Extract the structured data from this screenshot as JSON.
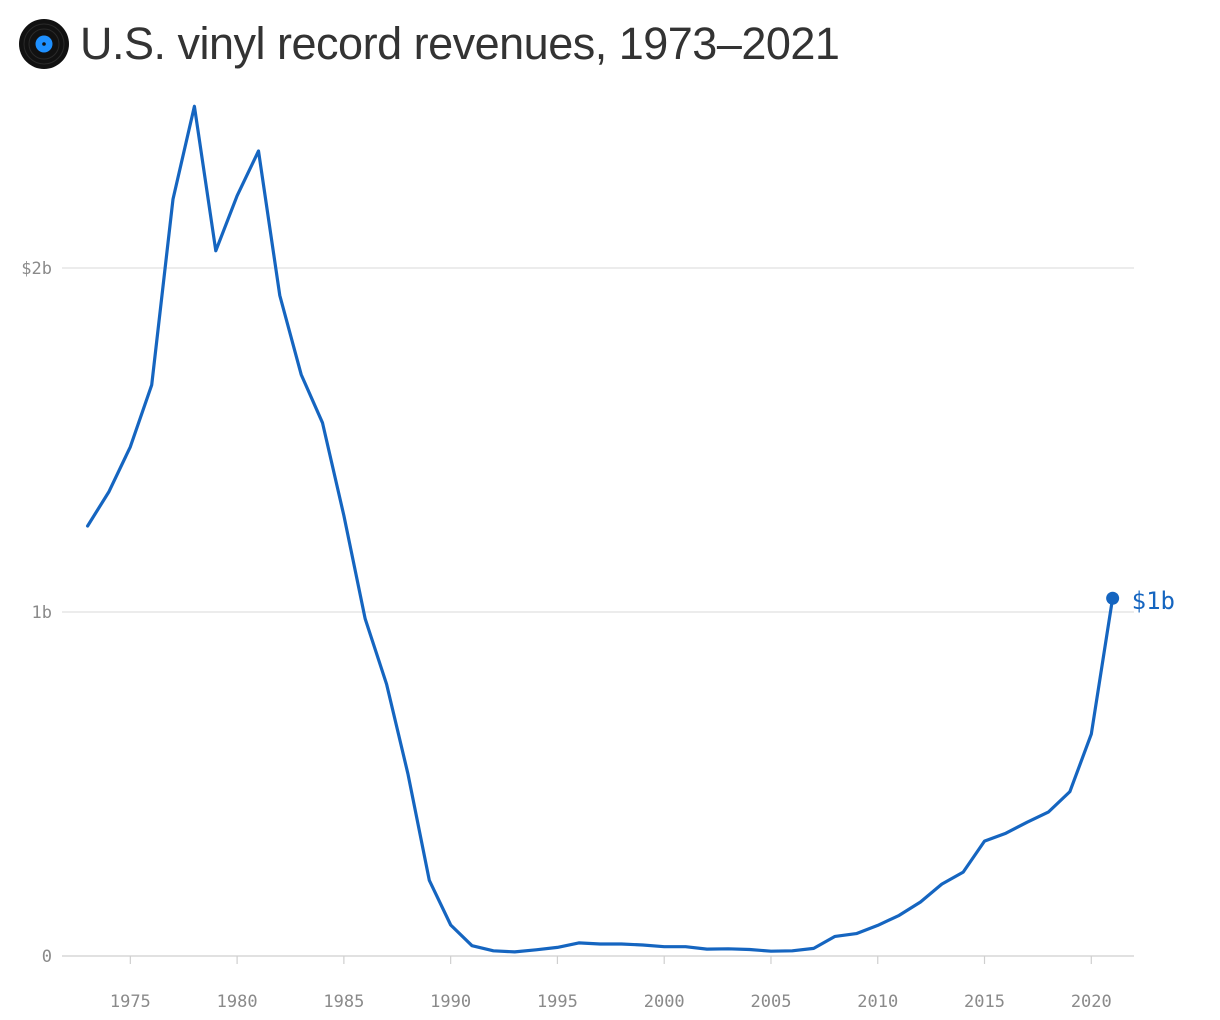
{
  "title": "U.S. vinyl record revenues, 1973–2021",
  "icon": "vinyl-record-icon",
  "colors": {
    "line": "#1565c0",
    "grid": "#e0e0e0",
    "axis_text": "#8a8a8a",
    "title": "#333333"
  },
  "chart_data": {
    "type": "line",
    "title": "U.S. vinyl record revenues, 1973–2021",
    "xlabel": "",
    "ylabel": "",
    "grid": true,
    "xlim": [
      1971.8,
      2022
    ],
    "ylim": [
      0,
      2.5
    ],
    "x_ticks": [
      1975,
      1980,
      1985,
      1990,
      1995,
      2000,
      2005,
      2010,
      2015,
      2020
    ],
    "y_ticks": [
      {
        "value": 0,
        "label": "0"
      },
      {
        "value": 1,
        "label": "1b"
      },
      {
        "value": 2,
        "label": "$2b"
      }
    ],
    "end_label": "$1b",
    "series": [
      {
        "x": [
          1973,
          1974,
          1975,
          1976,
          1977,
          1978,
          1979,
          1980,
          1981,
          1982,
          1983,
          1984,
          1985,
          1986,
          1987,
          1988,
          1989,
          1990,
          1991,
          1992,
          1993,
          1994,
          1995,
          1996,
          1997,
          1998,
          1999,
          2000,
          2001,
          2002,
          2003,
          2004,
          2005,
          2006,
          2007,
          2008,
          2009,
          2010,
          2011,
          2012,
          2013,
          2014,
          2015,
          2016,
          2017,
          2018,
          2019,
          2020,
          2021
        ],
        "values": [
          1.25,
          1.35,
          1.48,
          1.66,
          2.2,
          2.47,
          2.05,
          2.21,
          2.34,
          1.92,
          1.69,
          1.55,
          1.28,
          0.98,
          0.79,
          0.53,
          0.22,
          0.09,
          0.03,
          0.015,
          0.012,
          0.018,
          0.025,
          0.038,
          0.035,
          0.035,
          0.032,
          0.027,
          0.027,
          0.02,
          0.021,
          0.019,
          0.014,
          0.015,
          0.022,
          0.057,
          0.065,
          0.089,
          0.118,
          0.157,
          0.209,
          0.244,
          0.334,
          0.357,
          0.389,
          0.419,
          0.478,
          0.645,
          1.04
        ]
      }
    ]
  }
}
